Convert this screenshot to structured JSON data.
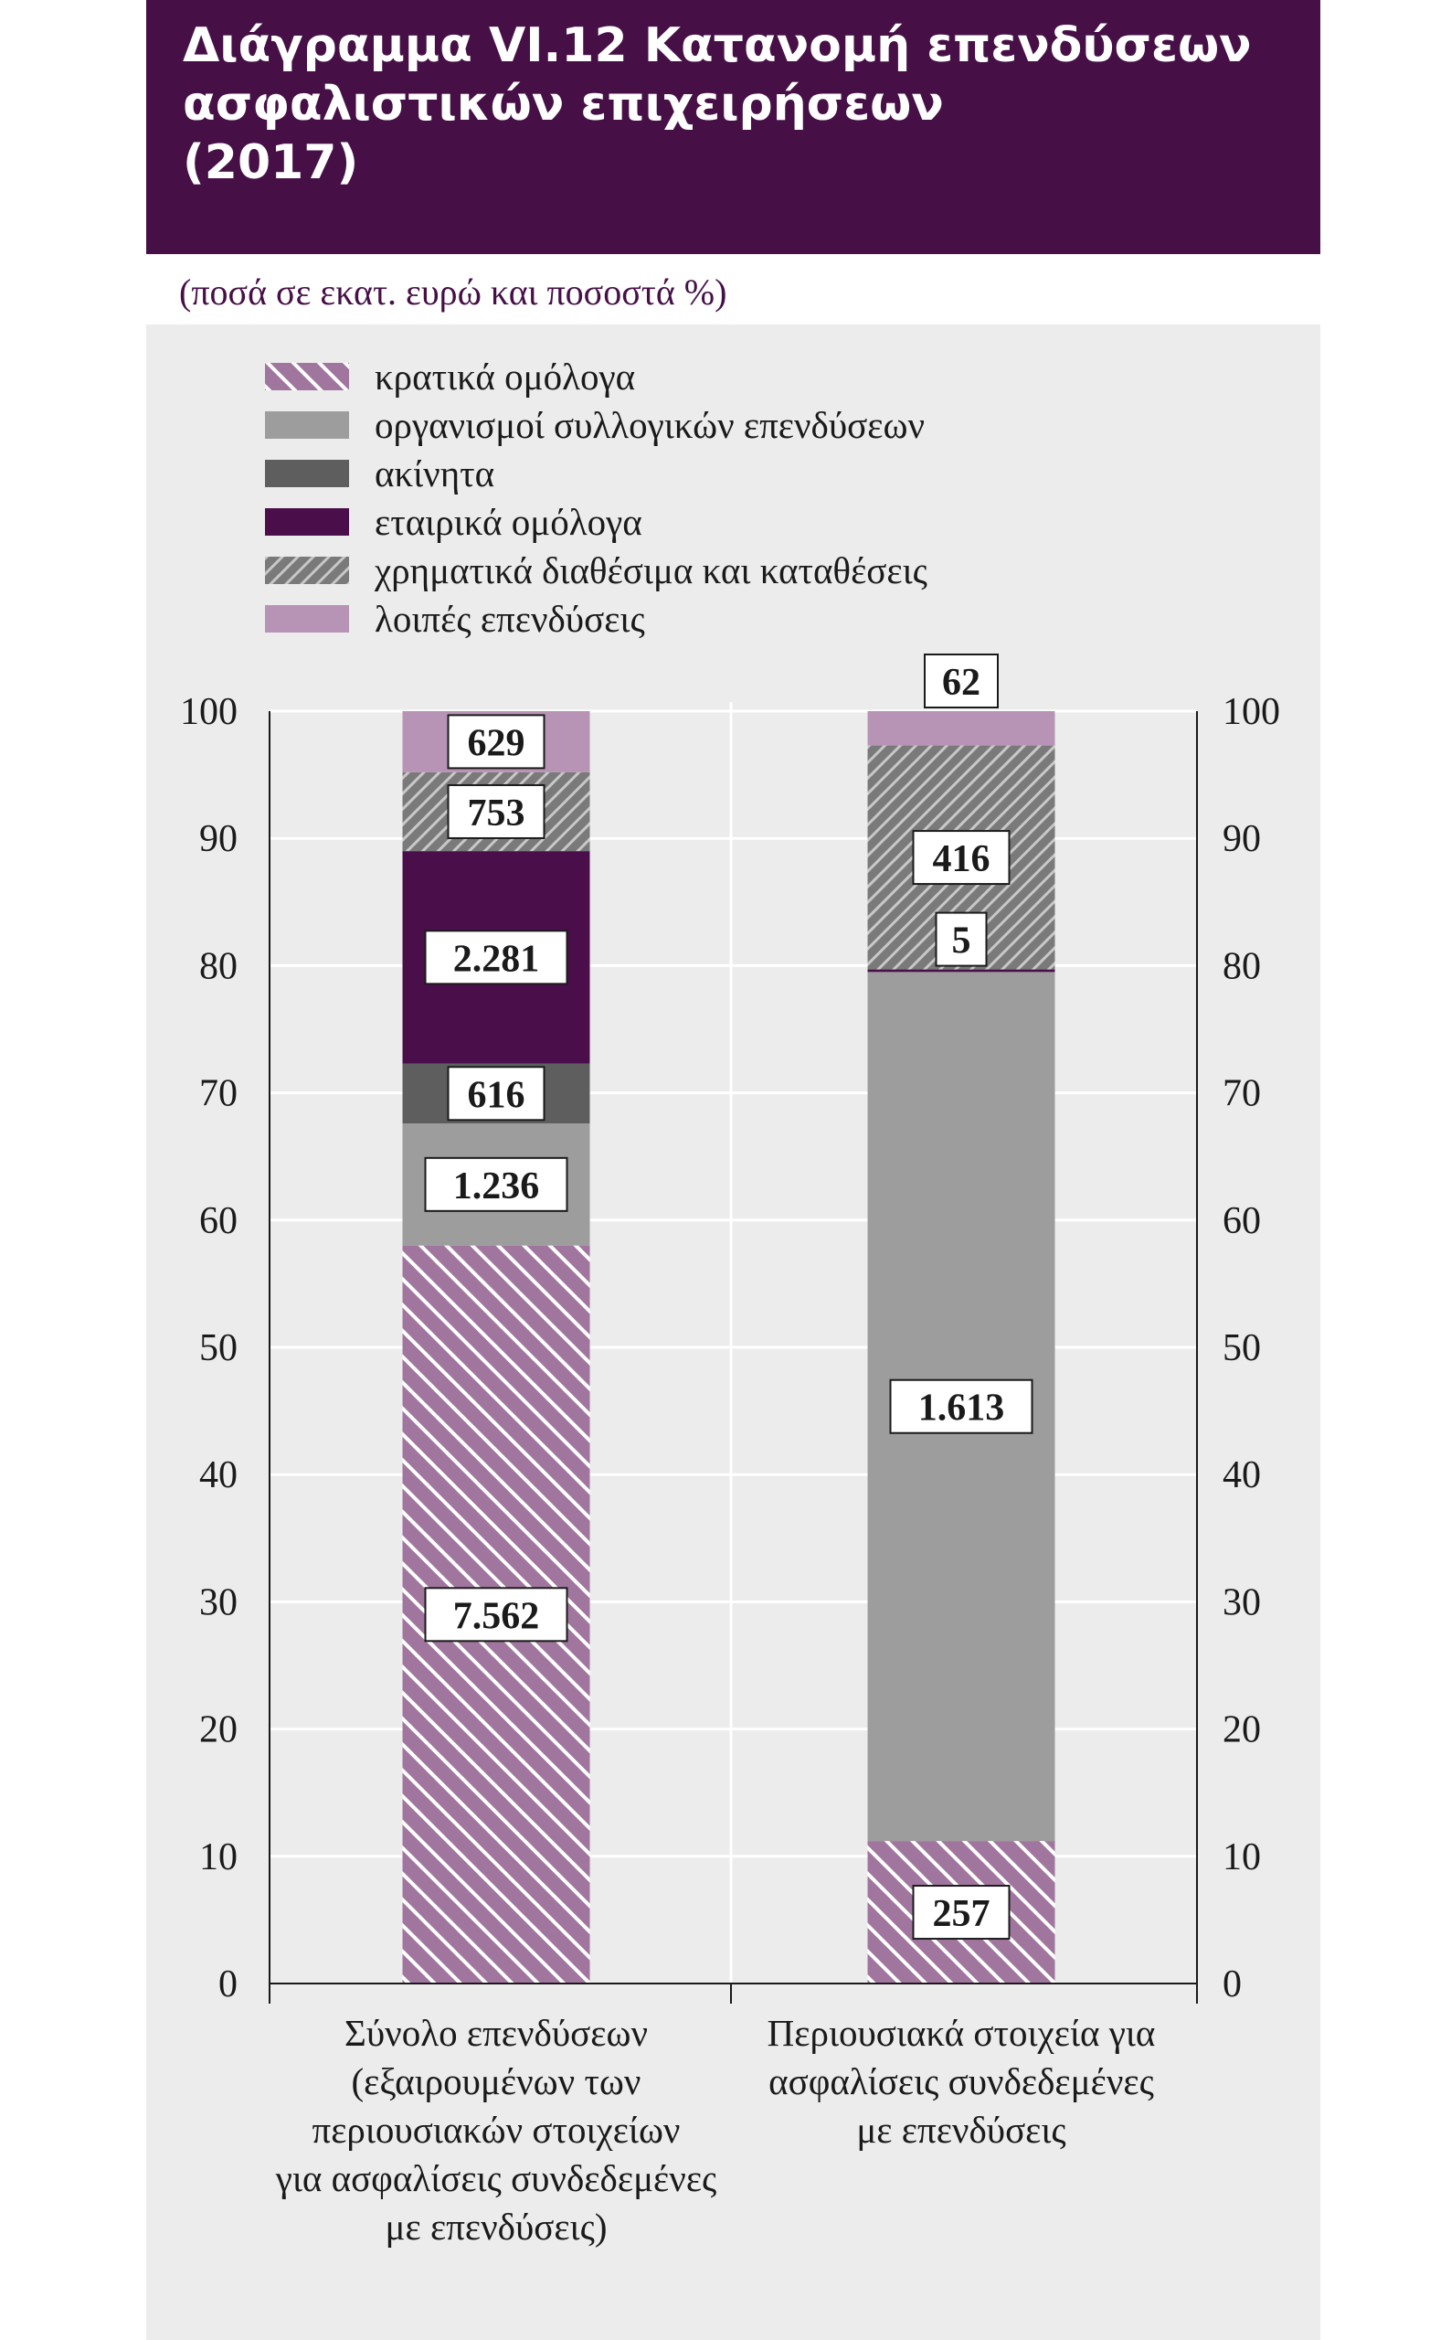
{
  "header": {
    "title_lines": [
      "Διάγραμμα VI.12  Κατανομή επενδύσεων",
      "ασφαλιστικών επιχειρήσεων",
      "(2017)"
    ],
    "subtitle": "(ποσά σε εκατ. ευρώ και ποσοστά %)"
  },
  "colors": {
    "header_bg": "#461047",
    "plot_bg": "#ececec",
    "gov_bonds": "#a0769f",
    "funds": "#9d9d9d",
    "real_estate": "#5e5e5e",
    "corp_bonds": "#4a0f4b",
    "cash": "#7a7a7a",
    "other": "#b794b6"
  },
  "legend": [
    {
      "label": "κρατικά ομόλογα",
      "icon": "hatched-mauve-swatch"
    },
    {
      "label": "οργανισμοί συλλογικών επενδύσεων",
      "icon": "gray-swatch"
    },
    {
      "label": "ακίνητα",
      "icon": "dark-gray-swatch"
    },
    {
      "label": "εταιρικά ομόλογα",
      "icon": "dark-purple-swatch"
    },
    {
      "label": "χρηματικά διαθέσιμα και καταθέσεις",
      "icon": "crosshatched-gray-swatch"
    },
    {
      "label": "λοιπές επενδύσεις",
      "icon": "light-mauve-swatch"
    }
  ],
  "chart_data": {
    "type": "bar",
    "stacked": true,
    "categories": [
      "Σύνολο επενδύσεων (εξαιρουμένων των περιουσιακών στοιχείων για ασφαλίσεις συνδεδεμένες με επενδύσεις)",
      "Περιουσιακά στοιχεία για ασφαλίσεις συνδεδεμένες με επενδύσεις"
    ],
    "category_label_lines": [
      [
        "Σύνολο επενδύσεων",
        "(εξαιρουμένων των",
        "περιουσιακών στοιχείων",
        "για ασφαλίσεις συνδεδεμένες",
        "με επενδύσεις)"
      ],
      [
        "Περιουσιακά στοιχεία για",
        "ασφαλίσεις συνδεδεμένες",
        "με επενδύσεις"
      ]
    ],
    "series": [
      {
        "name": "κρατικά ομόλογα",
        "amounts": [
          7562,
          257
        ],
        "amount_labels": [
          "7.562",
          "257"
        ],
        "percent": [
          58.0,
          11.2
        ]
      },
      {
        "name": "οργανισμοί συλλογικών επενδύσεων",
        "amounts": [
          1236,
          1613
        ],
        "amount_labels": [
          "1.236",
          "1.613"
        ],
        "percent": [
          9.6,
          68.3
        ]
      },
      {
        "name": "ακίνητα",
        "amounts": [
          616,
          0
        ],
        "amount_labels": [
          "616",
          ""
        ],
        "percent": [
          4.7,
          0.0
        ]
      },
      {
        "name": "εταιρικά ομόλογα",
        "amounts": [
          2281,
          5
        ],
        "amount_labels": [
          "2.281",
          "5"
        ],
        "percent": [
          16.7,
          0.2
        ]
      },
      {
        "name": "χρηματικά διαθέσιμα και καταθέσεις",
        "amounts": [
          753,
          416
        ],
        "amount_labels": [
          "753",
          "416"
        ],
        "percent": [
          6.2,
          17.6
        ]
      },
      {
        "name": "λοιπές επενδύσεις",
        "amounts": [
          629,
          62
        ],
        "amount_labels": [
          "629",
          "62"
        ],
        "percent": [
          4.8,
          2.7
        ]
      }
    ],
    "ylim": [
      0,
      100
    ],
    "yticks": [
      "0",
      "10",
      "20",
      "30",
      "40",
      "50",
      "60",
      "70",
      "80",
      "90",
      "100"
    ],
    "y_axis_both_sides": true,
    "grid": "horizontal",
    "legend_position": "top-left"
  }
}
